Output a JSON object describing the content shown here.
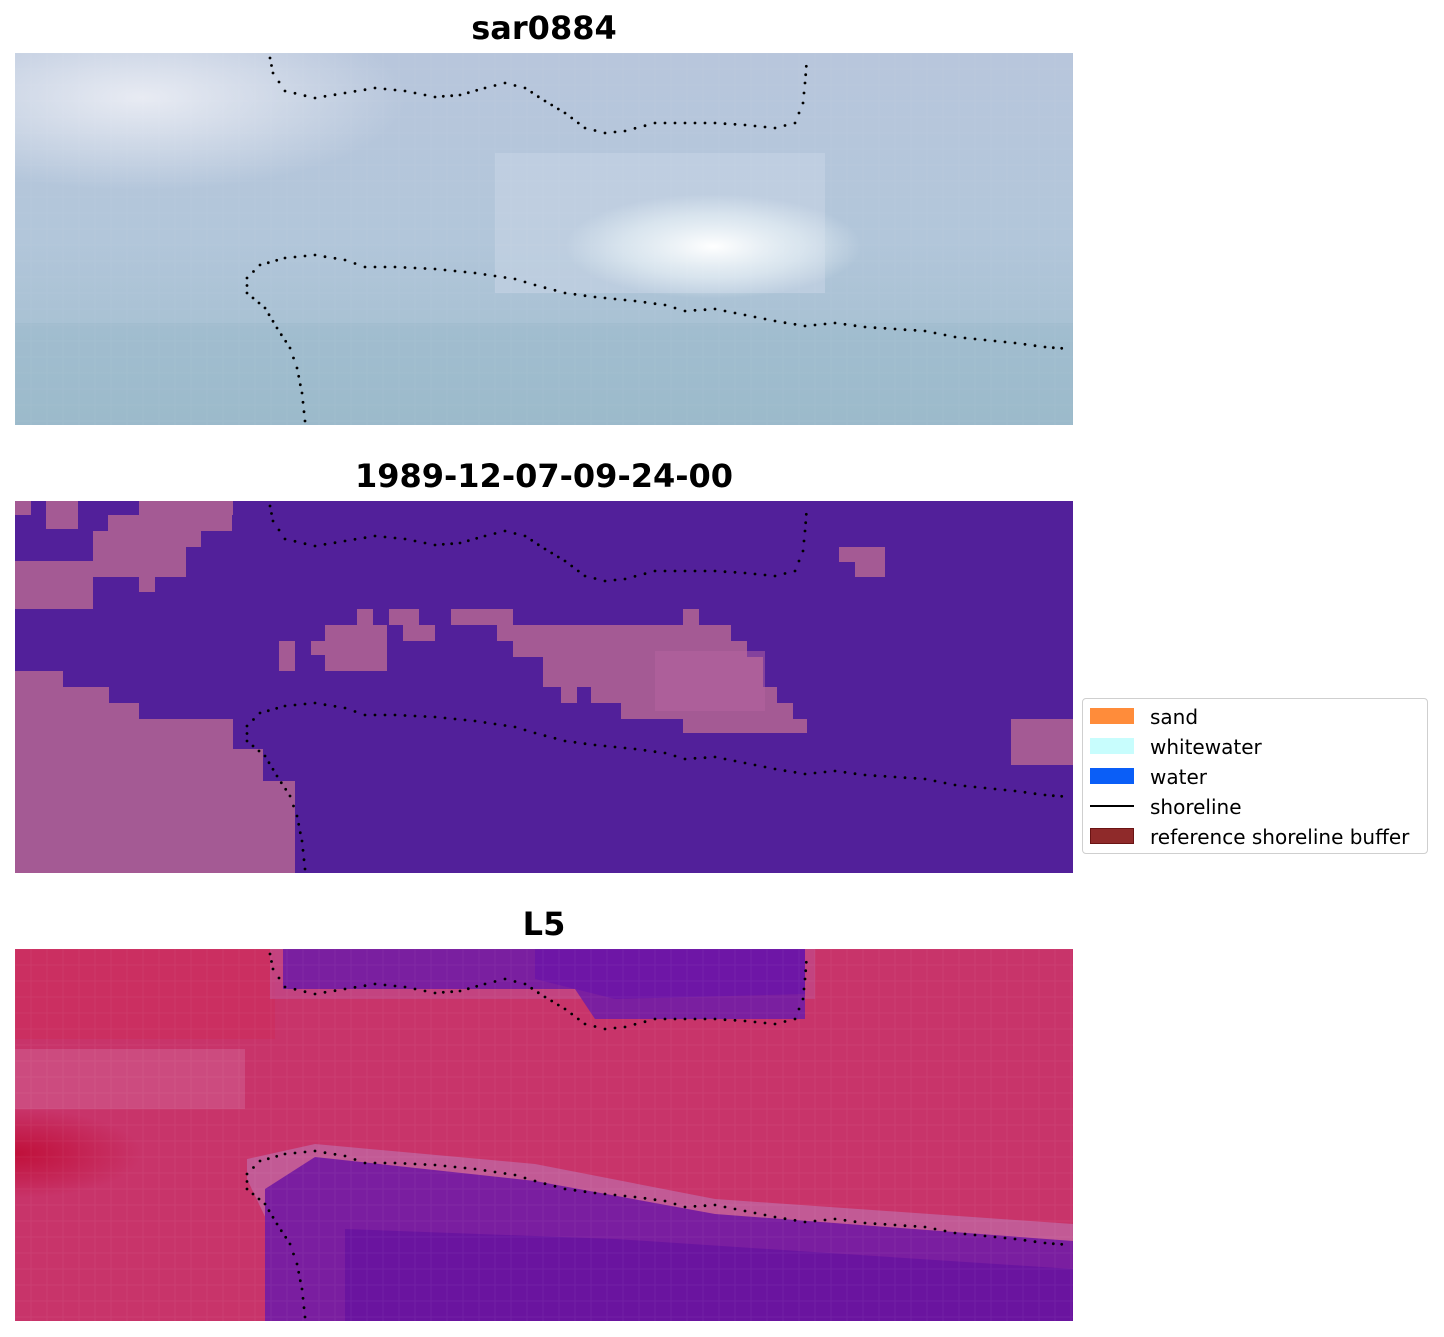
{
  "panels": [
    {
      "title": "sar0884",
      "description_kind": "rgb"
    },
    {
      "title": "1989-12-07-09-24-00",
      "description_kind": "classified"
    },
    {
      "title": "L5",
      "description_kind": "index"
    }
  ],
  "legend": {
    "items": [
      {
        "label": "sand",
        "color": "#ff8c3a",
        "kind": "patch"
      },
      {
        "label": "whitewater",
        "color": "#c8fdfd",
        "kind": "patch"
      },
      {
        "label": "water",
        "color": "#0a5ef7",
        "kind": "patch"
      },
      {
        "label": "shoreline",
        "color": "#000000",
        "kind": "line"
      },
      {
        "label": "reference shoreline buffer",
        "color": "#8f2a2a",
        "kind": "patch"
      }
    ]
  },
  "colors": {
    "rgb_base": "#aec4d6",
    "classified_water": "#52209a",
    "classified_land": "#a45a94",
    "index_high": "#c8285a",
    "index_low": "#5a139e"
  }
}
